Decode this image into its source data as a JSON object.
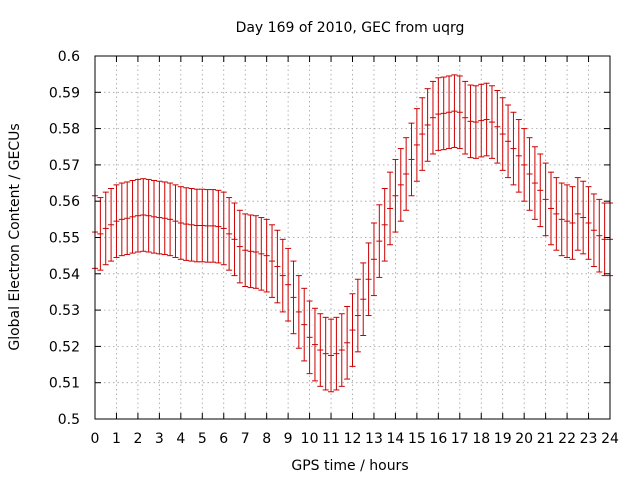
{
  "chart_data": {
    "type": "scatter",
    "title": "Day 169 of 2010, GEC from uqrg",
    "xlabel": "GPS time / hours",
    "ylabel": "Global Electron Content / GECUs",
    "xlim": [
      0,
      24
    ],
    "ylim": [
      0.5,
      0.6
    ],
    "x_ticks": [
      0,
      1,
      2,
      3,
      4,
      5,
      6,
      7,
      8,
      9,
      10,
      11,
      12,
      13,
      14,
      15,
      16,
      17,
      18,
      19,
      20,
      21,
      22,
      23,
      24
    ],
    "y_ticks": [
      0.5,
      0.51,
      0.52,
      0.53,
      0.54,
      0.55,
      0.56,
      0.57,
      0.58,
      0.59,
      0.6
    ],
    "grid": true,
    "error_bar": 0.01,
    "color": "#cc0000",
    "series": [
      {
        "x": [
          0,
          0.25,
          0.5,
          0.75,
          1,
          1.25,
          1.5,
          1.75,
          2,
          2.25,
          2.5,
          2.75,
          3,
          3.25,
          3.5,
          3.75,
          4,
          4.25,
          4.5,
          4.75,
          5,
          5.25,
          5.5,
          5.75,
          6,
          6.25,
          6.5,
          6.75,
          7,
          7.25,
          7.5,
          7.75,
          8,
          8.25,
          8.5,
          8.75,
          9,
          9.25,
          9.5,
          9.75,
          10,
          10.25,
          10.5,
          10.75,
          11,
          11.25,
          11.5,
          11.75,
          12,
          12.25,
          12.5,
          12.75,
          13,
          13.25,
          13.5,
          13.75,
          14,
          14.25,
          14.5,
          14.75,
          15,
          15.25,
          15.5,
          15.75,
          16,
          16.25,
          16.5,
          16.75,
          17,
          17.25,
          17.5,
          17.75,
          18,
          18.25,
          18.5,
          18.75,
          19,
          19.25,
          19.5,
          19.75,
          20,
          20.25,
          20.5,
          20.75,
          21,
          21.25,
          21.5,
          21.75,
          22,
          22.25,
          22.5,
          22.75,
          23,
          23.25,
          23.5,
          23.75,
          24
        ],
        "y": [
          0.5515,
          0.551,
          0.5525,
          0.5535,
          0.5545,
          0.555,
          0.5553,
          0.5557,
          0.556,
          0.5562,
          0.556,
          0.5557,
          0.5555,
          0.5553,
          0.555,
          0.5545,
          0.554,
          0.5537,
          0.5535,
          0.5533,
          0.5533,
          0.5532,
          0.5532,
          0.553,
          0.5525,
          0.551,
          0.5495,
          0.5475,
          0.5465,
          0.5462,
          0.546,
          0.5455,
          0.545,
          0.5435,
          0.542,
          0.5395,
          0.537,
          0.5335,
          0.5295,
          0.526,
          0.5225,
          0.5205,
          0.519,
          0.518,
          0.5175,
          0.518,
          0.519,
          0.521,
          0.5245,
          0.5285,
          0.533,
          0.5385,
          0.544,
          0.549,
          0.5535,
          0.558,
          0.5615,
          0.5645,
          0.5675,
          0.5715,
          0.5755,
          0.5785,
          0.581,
          0.583,
          0.584,
          0.5842,
          0.5845,
          0.5848,
          0.5845,
          0.583,
          0.582,
          0.5818,
          0.5822,
          0.5825,
          0.5818,
          0.5805,
          0.5785,
          0.5765,
          0.5745,
          0.5725,
          0.57,
          0.5675,
          0.565,
          0.563,
          0.5605,
          0.558,
          0.5565,
          0.555,
          0.5545,
          0.554,
          0.5565,
          0.5555,
          0.554,
          0.552,
          0.5505,
          0.5495,
          0.5495
        ]
      }
    ]
  }
}
